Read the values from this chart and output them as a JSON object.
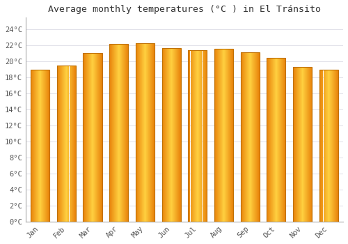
{
  "title": "Average monthly temperatures (°C ) in El Tránsito",
  "months": [
    "Jan",
    "Feb",
    "Mar",
    "Apr",
    "May",
    "Jun",
    "Jul",
    "Aug",
    "Sep",
    "Oct",
    "Nov",
    "Dec"
  ],
  "values": [
    19.0,
    19.5,
    21.1,
    22.2,
    22.3,
    21.7,
    21.4,
    21.6,
    21.2,
    20.5,
    19.3,
    19.0
  ],
  "bar_color_left": "#E8820A",
  "bar_color_center": "#FFD040",
  "bar_color_right": "#E8820A",
  "background_color": "#FFFFFF",
  "grid_color": "#E0E0E8",
  "ytick_labels": [
    "0°C",
    "2°C",
    "4°C",
    "6°C",
    "8°C",
    "10°C",
    "12°C",
    "14°C",
    "16°C",
    "18°C",
    "20°C",
    "22°C",
    "24°C"
  ],
  "ytick_values": [
    0,
    2,
    4,
    6,
    8,
    10,
    12,
    14,
    16,
    18,
    20,
    22,
    24
  ],
  "ylim": [
    0,
    25.5
  ],
  "title_fontsize": 9.5,
  "tick_fontsize": 7.5,
  "title_color": "#333333",
  "tick_color": "#555555",
  "bar_width": 0.72,
  "n_gradient_steps": 100
}
